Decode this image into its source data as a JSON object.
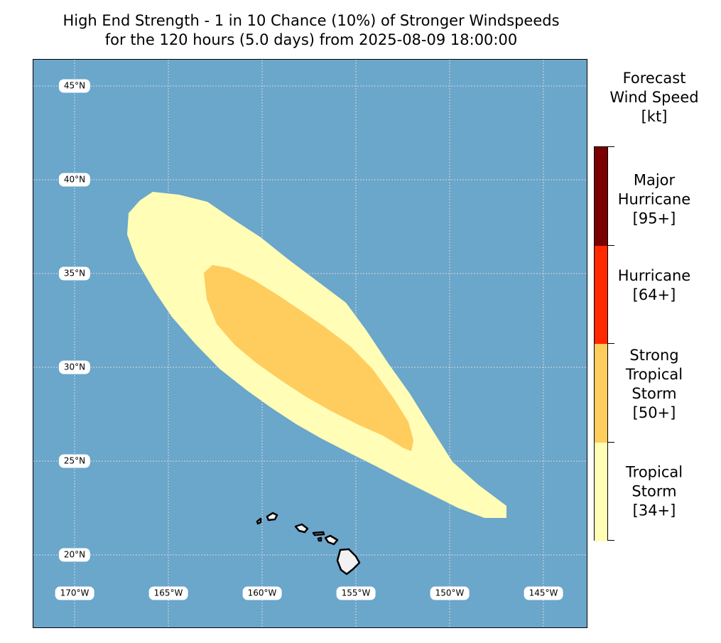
{
  "title": {
    "line1": "High End Strength - 1 in 10 Chance (10%) of Stronger Windspeeds",
    "line2": "for the 120 hours (5.0 days) from 2025-08-09 18:00:00"
  },
  "map": {
    "ocean_color": "#6ba6cb",
    "land_color": "#f2f2f2",
    "gridline_color": "#d9d9d9",
    "lat_labels": [
      "45°N",
      "40°N",
      "35°N",
      "30°N",
      "25°N",
      "20°N"
    ],
    "lon_labels": [
      "170°W",
      "165°W",
      "160°W",
      "155°W",
      "150°W",
      "145°W"
    ],
    "features": [
      "hawaiian-islands",
      "wind-swath-tropical-storm",
      "wind-swath-strong-tropical-storm"
    ]
  },
  "legend": {
    "title_line1": "Forecast",
    "title_line2": "Wind Speed",
    "title_line3": "[kt]",
    "categories": [
      {
        "name": "Major Hurricane",
        "lines": [
          "Major",
          "Hurricane",
          "[95+]"
        ],
        "color": "#7a0000"
      },
      {
        "name": "Hurricane",
        "lines": [
          "Hurricane",
          "[64+]"
        ],
        "color": "#ff2a00"
      },
      {
        "name": "Strong Tropical Storm",
        "lines": [
          "Strong",
          "Tropical",
          "Storm",
          "[50+]"
        ],
        "color": "#ffcc5e"
      },
      {
        "name": "Tropical Storm",
        "lines": [
          "Tropical",
          "Storm",
          "[34+]"
        ],
        "color": "#fffdb6"
      }
    ]
  }
}
